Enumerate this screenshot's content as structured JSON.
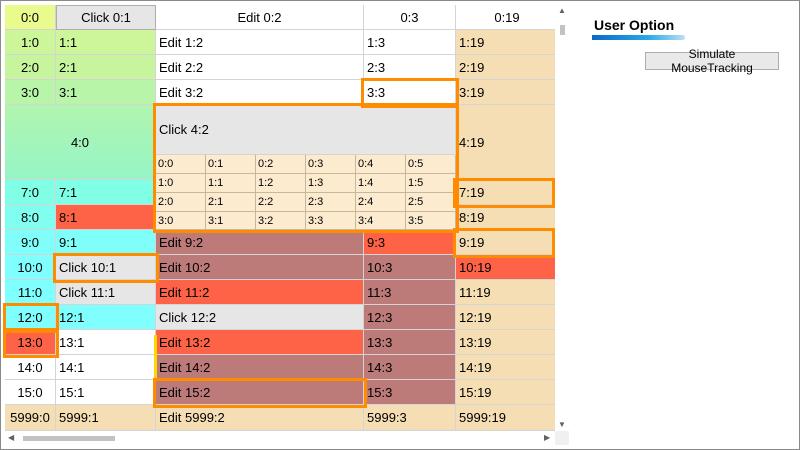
{
  "header": {
    "c0": "0:0",
    "c1": "Click 0:1",
    "c2": "Edit 0:2",
    "c3": "0:3",
    "c4": "0:19"
  },
  "rows": {
    "r1": {
      "c0": "1:0",
      "c1": "1:1",
      "c2": "Edit 1:2",
      "c3": "1:3",
      "c4": "1:19"
    },
    "r2": {
      "c0": "2:0",
      "c1": "2:1",
      "c2": "Edit 2:2",
      "c3": "2:3",
      "c4": "2:19"
    },
    "r3": {
      "c0": "3:0",
      "c1": "3:1",
      "c2": "Edit 3:2",
      "c3": "3:3",
      "c4": "3:19"
    },
    "r4": {
      "c0": "4:0",
      "c2": "Click 4:2",
      "c4": "4:19"
    },
    "r7": {
      "c0": "7:0",
      "c1": "7:1",
      "c4": "7:19"
    },
    "r8": {
      "c0": "8:0",
      "c1": "8:1",
      "c4": "8:19"
    },
    "r9": {
      "c0": "9:0",
      "c1": "9:1",
      "c2": "Edit 9:2",
      "c3": "9:3",
      "c4": "9:19"
    },
    "r10": {
      "c0": "10:0",
      "c1": "Click 10:1",
      "c2": "Edit 10:2",
      "c3": "10:3",
      "c4": "10:19"
    },
    "r11": {
      "c0": "11:0",
      "c1": "Click 11:1",
      "c2": "Edit 11:2",
      "c3": "11:3",
      "c4": "11:19"
    },
    "r12": {
      "c0": "12:0",
      "c1": "12:1",
      "c2": "Click 12:2",
      "c3": "12:3",
      "c4": "12:19"
    },
    "r13": {
      "c0": "13:0",
      "c1": "13:1",
      "c2": "Edit 13:2",
      "c3": "13:3",
      "c4": "13:19"
    },
    "r14": {
      "c0": "14:0",
      "c1": "14:1",
      "c2": "Edit 14:2",
      "c3": "14:3",
      "c4": "14:19"
    },
    "r15": {
      "c0": "15:0",
      "c1": "15:1",
      "c2": "Edit 15:2",
      "c3": "15:3",
      "c4": "15:19"
    },
    "r5999": {
      "c0": "5999:0",
      "c1": "5999:1",
      "c2": "Edit 5999:2",
      "c3": "5999:3",
      "c4": "5999:19"
    }
  },
  "subgrid": [
    [
      "0:0",
      "0:1",
      "0:2",
      "0:3",
      "0:4",
      "0:5"
    ],
    [
      "1:0",
      "1:1",
      "1:2",
      "1:3",
      "1:4",
      "1:5"
    ],
    [
      "2:0",
      "2:1",
      "2:2",
      "2:3",
      "2:4",
      "2:5"
    ],
    [
      "3:0",
      "3:1",
      "3:2",
      "3:3",
      "3:4",
      "3:5"
    ]
  ],
  "panel": {
    "title": "User Option",
    "button": "Simulate MouseTracking"
  },
  "colors": {
    "highlight": "#ff8c00",
    "red": "#ff6347",
    "cyan": "#80ffff",
    "brown": "#bc7a78",
    "peach": "#f5deb3",
    "lime": "#d4f58c"
  }
}
